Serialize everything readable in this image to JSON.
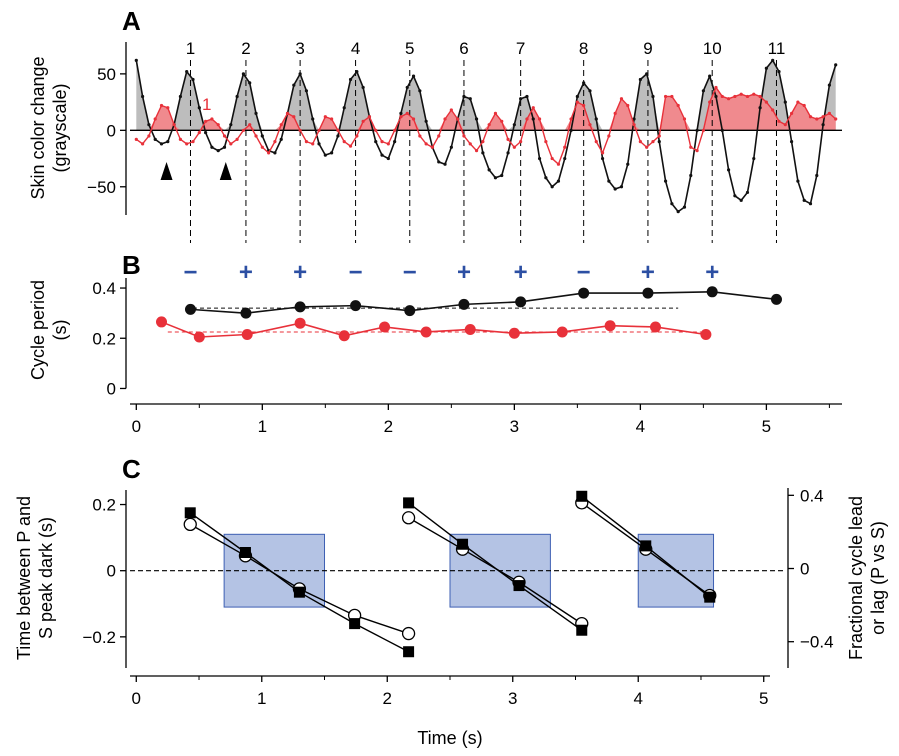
{
  "figure": {
    "panel_labels": [
      "A",
      "B",
      "C"
    ]
  },
  "colors": {
    "black_series": "#111111",
    "red_series": "#e8313a",
    "red_fill": "#f08a8e",
    "gray_fill": "#bdbdbd",
    "box_fill": "#b4c3e4",
    "box_stroke": "#3d5fb3",
    "sign_color": "#2c4fa3"
  },
  "chart_data": [
    {
      "panel": "A",
      "type": "line",
      "ylabel": [
        "Skin color change",
        "(grayscale)"
      ],
      "yticks": [
        -50,
        0,
        50
      ],
      "xlim": [
        -0.05,
        5.6
      ],
      "ylim": [
        -75,
        80
      ],
      "cycle_labels": [
        "1",
        "2",
        "3",
        "4",
        "5",
        "6",
        "7",
        "8",
        "9",
        "10",
        "11"
      ],
      "cycle_times": [
        0.43,
        0.87,
        1.3,
        1.74,
        2.17,
        2.6,
        3.05,
        3.55,
        4.06,
        4.57,
        5.08
      ],
      "red_label": "1",
      "arrowheads_x": [
        0.24,
        0.71
      ],
      "series": [
        {
          "color": "black",
          "x": [
            0.0,
            0.05,
            0.1,
            0.15,
            0.2,
            0.25,
            0.3,
            0.35,
            0.4,
            0.45,
            0.5,
            0.55,
            0.6,
            0.65,
            0.7,
            0.75,
            0.8,
            0.85,
            0.9,
            0.95,
            1.0,
            1.05,
            1.1,
            1.15,
            1.2,
            1.25,
            1.3,
            1.35,
            1.4,
            1.45,
            1.5,
            1.55,
            1.6,
            1.65,
            1.7,
            1.75,
            1.8,
            1.85,
            1.9,
            1.95,
            2.0,
            2.05,
            2.1,
            2.15,
            2.2,
            2.25,
            2.3,
            2.35,
            2.4,
            2.45,
            2.5,
            2.55,
            2.6,
            2.65,
            2.7,
            2.75,
            2.8,
            2.85,
            2.9,
            2.95,
            3.0,
            3.05,
            3.1,
            3.15,
            3.2,
            3.25,
            3.3,
            3.35,
            3.4,
            3.45,
            3.5,
            3.55,
            3.6,
            3.65,
            3.7,
            3.75,
            3.8,
            3.85,
            3.9,
            3.95,
            4.0,
            4.05,
            4.1,
            4.15,
            4.2,
            4.25,
            4.3,
            4.35,
            4.4,
            4.45,
            4.5,
            4.55,
            4.6,
            4.65,
            4.7,
            4.75,
            4.8,
            4.85,
            4.9,
            4.95,
            5.0,
            5.05,
            5.1,
            5.15,
            5.2,
            5.25,
            5.3,
            5.35,
            5.4,
            5.45,
            5.5,
            5.55
          ],
          "y": [
            62,
            30,
            5,
            -8,
            -12,
            -10,
            5,
            30,
            52,
            45,
            20,
            -2,
            -15,
            -18,
            -15,
            5,
            30,
            50,
            42,
            15,
            -5,
            -18,
            -20,
            -8,
            15,
            40,
            50,
            35,
            10,
            -12,
            -22,
            -20,
            -5,
            20,
            45,
            52,
            38,
            12,
            -10,
            -22,
            -25,
            -10,
            15,
            38,
            48,
            35,
            8,
            -15,
            -28,
            -30,
            -15,
            10,
            30,
            28,
            10,
            -20,
            -35,
            -42,
            -40,
            -20,
            5,
            28,
            30,
            10,
            -25,
            -42,
            -50,
            -45,
            -25,
            0,
            30,
            42,
            35,
            10,
            -25,
            -45,
            -52,
            -50,
            -30,
            10,
            45,
            50,
            30,
            -10,
            -45,
            -65,
            -72,
            -68,
            -40,
            0,
            35,
            48,
            30,
            0,
            -35,
            -58,
            -62,
            -55,
            -25,
            20,
            55,
            62,
            52,
            25,
            -10,
            -45,
            -62,
            -65,
            -40,
            5,
            40,
            58
          ]
        },
        {
          "color": "red",
          "x": [
            0.0,
            0.05,
            0.1,
            0.15,
            0.2,
            0.25,
            0.3,
            0.35,
            0.4,
            0.45,
            0.5,
            0.55,
            0.6,
            0.65,
            0.7,
            0.75,
            0.8,
            0.85,
            0.9,
            0.95,
            1.0,
            1.05,
            1.1,
            1.15,
            1.2,
            1.25,
            1.3,
            1.35,
            1.4,
            1.45,
            1.5,
            1.55,
            1.6,
            1.65,
            1.7,
            1.75,
            1.8,
            1.85,
            1.9,
            1.95,
            2.0,
            2.05,
            2.1,
            2.15,
            2.2,
            2.25,
            2.3,
            2.35,
            2.4,
            2.45,
            2.5,
            2.55,
            2.6,
            2.65,
            2.7,
            2.75,
            2.8,
            2.85,
            2.9,
            2.95,
            3.0,
            3.05,
            3.1,
            3.15,
            3.2,
            3.25,
            3.3,
            3.35,
            3.4,
            3.45,
            3.5,
            3.55,
            3.6,
            3.65,
            3.7,
            3.75,
            3.8,
            3.85,
            3.9,
            3.95,
            4.0,
            4.05,
            4.1,
            4.15,
            4.2,
            4.25,
            4.3,
            4.35,
            4.4,
            4.45,
            4.5,
            4.55,
            4.6,
            4.65,
            4.7,
            4.75,
            4.8,
            4.85,
            4.9,
            4.95,
            5.0,
            5.05,
            5.1,
            5.15,
            5.2,
            5.25,
            5.3,
            5.35,
            5.4,
            5.45,
            5.5,
            5.55
          ],
          "y": [
            -8,
            -12,
            -5,
            10,
            22,
            20,
            5,
            -8,
            -12,
            -10,
            -2,
            8,
            10,
            5,
            -5,
            -12,
            -8,
            0,
            5,
            -5,
            -15,
            -20,
            -10,
            5,
            15,
            12,
            0,
            -10,
            -12,
            0,
            12,
            10,
            0,
            -10,
            -14,
            -5,
            8,
            12,
            0,
            -10,
            -12,
            0,
            12,
            15,
            10,
            -5,
            -12,
            -15,
            -5,
            10,
            18,
            10,
            -5,
            -12,
            -18,
            -10,
            5,
            15,
            8,
            -8,
            -15,
            -10,
            10,
            20,
            10,
            -10,
            -25,
            -30,
            -15,
            10,
            25,
            22,
            5,
            -10,
            -20,
            -5,
            15,
            28,
            22,
            5,
            -10,
            -15,
            -10,
            -5,
            30,
            30,
            22,
            10,
            -15,
            -18,
            0,
            25,
            38,
            30,
            28,
            30,
            32,
            30,
            32,
            30,
            25,
            18,
            8,
            5,
            15,
            25,
            22,
            12,
            10,
            12,
            15,
            10
          ]
        }
      ]
    },
    {
      "panel": "B",
      "type": "scatter",
      "ylabel": [
        "Cycle period",
        "(s)"
      ],
      "yticks": [
        "0",
        "0.2",
        "0.4"
      ],
      "ytick_values": [
        0,
        0.2,
        0.4
      ],
      "xticks": [
        "0",
        "1",
        "2",
        "3",
        "4",
        "5"
      ],
      "xtick_values": [
        0,
        1,
        2,
        3,
        4,
        5
      ],
      "xlim": [
        -0.05,
        5.6
      ],
      "ylim": [
        -0.03,
        0.44
      ],
      "signs": [
        "−",
        "+",
        "+",
        "−",
        "−",
        "+",
        "+",
        "−",
        "+",
        "+"
      ],
      "signs_x": [
        0.43,
        0.87,
        1.3,
        1.74,
        2.17,
        2.6,
        3.05,
        3.55,
        4.06,
        4.57
      ],
      "series": [
        {
          "color": "black",
          "x": [
            0.43,
            0.87,
            1.3,
            1.74,
            2.17,
            2.6,
            3.05,
            3.55,
            4.06,
            4.57,
            5.08
          ],
          "y": [
            0.315,
            0.3,
            0.325,
            0.33,
            0.31,
            0.335,
            0.345,
            0.38,
            0.38,
            0.385,
            0.355
          ]
        },
        {
          "color": "red",
          "x": [
            0.2,
            0.5,
            0.88,
            1.3,
            1.65,
            1.97,
            2.3,
            2.65,
            3.0,
            3.38,
            3.76,
            4.12,
            4.52
          ],
          "y": [
            0.265,
            0.205,
            0.215,
            0.26,
            0.21,
            0.245,
            0.225,
            0.235,
            0.22,
            0.225,
            0.25,
            0.245,
            0.215
          ]
        }
      ],
      "dashed_refs": [
        {
          "color": "black",
          "y": 0.32,
          "x": [
            0.45,
            4.3
          ]
        },
        {
          "color": "red",
          "y": 0.225,
          "x": [
            0.25,
            4.5
          ]
        }
      ]
    },
    {
      "panel": "C",
      "type": "line",
      "ylabel": [
        "Time between P and",
        "S peak dark (s)"
      ],
      "ylabel_italic_words": [
        "P",
        "S"
      ],
      "y2label": [
        "Fractional cycle lead",
        "or lag (P vs S)"
      ],
      "xlabel": "Time (s)",
      "yticks": [
        "-0.2",
        "0",
        "0.2"
      ],
      "ytick_values": [
        -0.2,
        0,
        0.2
      ],
      "y2ticks": [
        "-0.4",
        "0",
        "0.4"
      ],
      "y2tick_values": [
        -0.4,
        0,
        0.4
      ],
      "xticks": [
        "0",
        "1",
        "2",
        "3",
        "4",
        "5"
      ],
      "xtick_values": [
        0,
        1,
        2,
        3,
        4,
        5
      ],
      "xlim": [
        -0.05,
        5.05
      ],
      "ylim": [
        -0.27,
        0.25
      ],
      "y2lim": [
        -0.5,
        0.44
      ],
      "boxes": [
        {
          "x": [
            0.7,
            1.5
          ],
          "y": [
            -0.11,
            0.11
          ]
        },
        {
          "x": [
            2.5,
            3.3
          ],
          "y": [
            -0.11,
            0.11
          ]
        },
        {
          "x": [
            4.0,
            4.6
          ],
          "y": [
            -0.11,
            0.11
          ]
        }
      ],
      "series": [
        {
          "name": "squares",
          "marker": "square",
          "segments": [
            {
              "x": [
                0.43,
                0.87,
                1.3,
                1.74,
                2.17
              ],
              "y": [
                0.175,
                0.055,
                -0.065,
                -0.16,
                -0.245
              ]
            },
            {
              "x": [
                2.17,
                2.6,
                3.05,
                3.55
              ],
              "y": [
                0.205,
                0.08,
                -0.045,
                -0.18
              ]
            },
            {
              "x": [
                3.55,
                4.06,
                4.57
              ],
              "y": [
                0.225,
                0.075,
                -0.08
              ]
            }
          ]
        },
        {
          "name": "circles",
          "marker": "open-circle",
          "segments": [
            {
              "x": [
                0.43,
                0.87,
                1.3,
                1.74,
                2.17
              ],
              "y": [
                0.14,
                0.045,
                -0.055,
                -0.135,
                -0.19
              ]
            },
            {
              "x": [
                2.17,
                2.6,
                3.05,
                3.55
              ],
              "y": [
                0.16,
                0.065,
                -0.035,
                -0.16
              ]
            },
            {
              "x": [
                3.55,
                4.06,
                4.57
              ],
              "y": [
                0.205,
                0.065,
                -0.075
              ]
            }
          ]
        }
      ]
    }
  ]
}
